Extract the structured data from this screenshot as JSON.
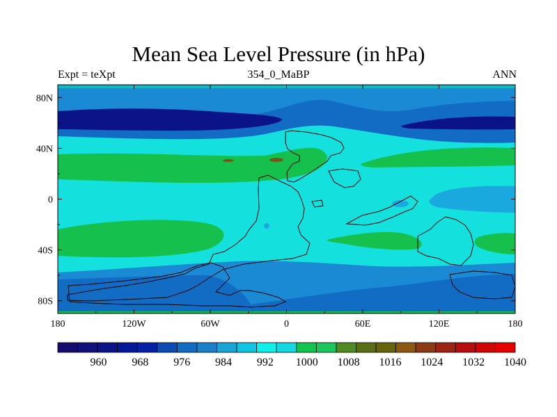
{
  "chart_data": {
    "type": "heatmap",
    "title": "Mean Sea Level Pressure (in hPa)",
    "left_string": "Expt = teXpt",
    "center_string": "354_0_MaBP",
    "right_string": "ANN",
    "x_ticks": [
      "180",
      "120W",
      "60W",
      "0",
      "60E",
      "120E",
      "180"
    ],
    "x_tick_values": [
      -180,
      -120,
      -60,
      0,
      60,
      120,
      180
    ],
    "y_ticks": [
      "80N",
      "40N",
      "0",
      "40S",
      "80S"
    ],
    "y_tick_values": [
      80,
      40,
      0,
      -40,
      -80
    ],
    "xlim": [
      -180,
      180
    ],
    "ylim": [
      -90,
      90
    ],
    "colorbar": {
      "levels": [
        956,
        960,
        964,
        968,
        972,
        976,
        980,
        984,
        988,
        992,
        996,
        1000,
        1004,
        1008,
        1012,
        1016,
        1020,
        1024,
        1028,
        1032,
        1036,
        1040
      ],
      "labels": [
        "960",
        "968",
        "976",
        "984",
        "992",
        "1000",
        "1008",
        "1016",
        "1024",
        "1032",
        "1040"
      ],
      "label_values": [
        960,
        968,
        976,
        984,
        992,
        1000,
        1008,
        1016,
        1024,
        1032,
        1040
      ],
      "colors": [
        "#160c6e",
        "#11107c",
        "#0b1388",
        "#041997",
        "#0520a5",
        "#0c4ab4",
        "#126cc4",
        "#1a80c9",
        "#1ba4d6",
        "#0ec6e3",
        "#10f0ea",
        "#14d9e0",
        "#13c44f",
        "#1bc65c",
        "#4f8b22",
        "#5a6f15",
        "#66650c",
        "#8d5912",
        "#8c3a14",
        "#9c2414",
        "#b80d0f",
        "#cf0606",
        "#e60000"
      ]
    },
    "colors": {
      "deep_low": "#0b1388",
      "low": "#126cc4",
      "mid_low": "#1b8ad4",
      "mid": "#1aa9df",
      "base": "#14e0dd",
      "high": "#15c04d",
      "peak": "#6e5a14",
      "band_top": "#15b7c5"
    }
  }
}
